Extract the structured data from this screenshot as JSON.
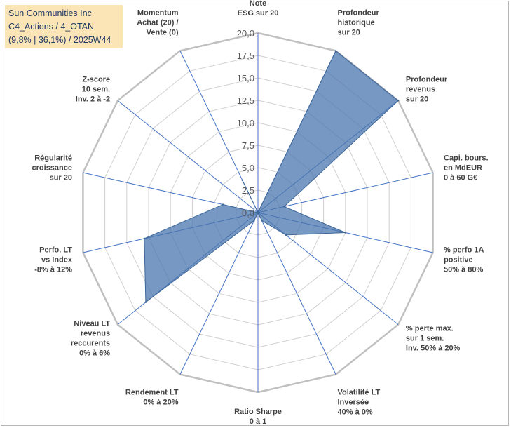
{
  "title_lines": [
    "Sun Communities Inc",
    "C4_Actions / 4_OTAN",
    "(9,8% | 36,1%) / 2025W44"
  ],
  "chart_data": {
    "type": "radar",
    "title": "Sun Communities Inc",
    "rlim": [
      0,
      20
    ],
    "ticks": [
      "0,0",
      "2,5",
      "5,0",
      "7,5",
      "10,0",
      "12,5",
      "15,0",
      "17,5",
      "20,0"
    ],
    "tick_values": [
      0,
      2.5,
      5,
      7.5,
      10,
      12.5,
      15,
      17.5,
      20
    ],
    "categories": [
      [
        "Note",
        "ESG sur 20"
      ],
      [
        "Profondeur",
        "historique",
        "sur 20"
      ],
      [
        "Profondeur",
        "revenus",
        "sur 20"
      ],
      [
        "Capi. bours.",
        "en MdEUR",
        "0 à 60 G€"
      ],
      [
        "% perfo 1A",
        "positive",
        "50% à 80%"
      ],
      [
        "% perte max.",
        "sur 1 sem.",
        "Inv. 50% à 20%"
      ],
      [
        "Volatilité LT",
        "Inversée",
        "40% à 0%"
      ],
      [
        "Ratio Sharpe",
        "0 à 1"
      ],
      [
        "Rendement LT",
        "0% à 20%"
      ],
      [
        "Niveau LT",
        "revenus",
        "reccurents",
        "0% à 6%"
      ],
      [
        "Perfo. LT",
        "vs Index",
        "-8% à 12%"
      ],
      [
        "Régularité",
        "croissance",
        "sur 20"
      ],
      [
        "Z-score",
        "10 sem.",
        "Inv. 2 à -2"
      ],
      [
        "Momentum",
        "Achat (20) /",
        "Vente (0)"
      ]
    ],
    "series": [
      {
        "name": "Sun Communities Inc",
        "values": [
          0,
          20,
          20,
          3,
          10,
          4,
          1,
          0,
          1,
          16,
          13,
          4,
          0,
          4
        ],
        "color": "#4a76ad",
        "fill_opacity": 0.75
      }
    ],
    "grid_color": "#d0d0d0",
    "spoke_color": "#4472c4"
  }
}
